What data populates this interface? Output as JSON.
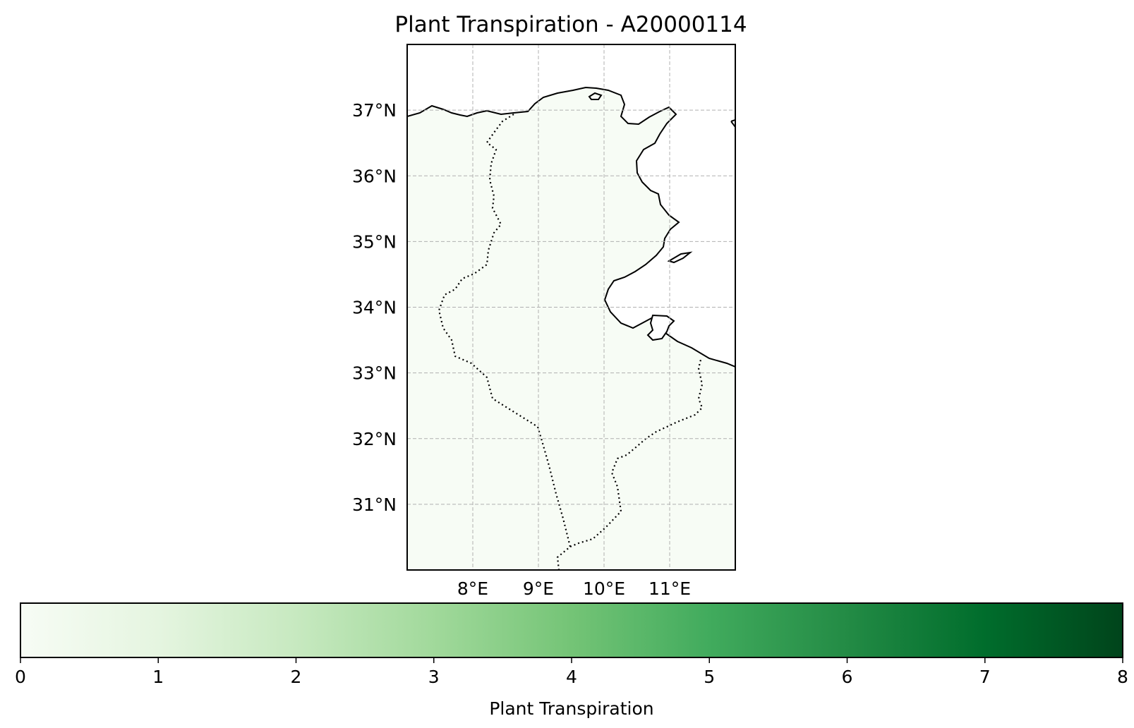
{
  "title": "Plant Transpiration - A20000114",
  "map": {
    "lon_range": [
      7.0,
      12.0
    ],
    "lat_range": [
      30.0,
      38.0
    ],
    "projection": "PlateCarree",
    "gridlines": true,
    "lon_ticks": [
      {
        "value": 8,
        "label": "8°E"
      },
      {
        "value": 9,
        "label": "9°E"
      },
      {
        "value": 10,
        "label": "10°E"
      },
      {
        "value": 11,
        "label": "11°E"
      }
    ],
    "lat_ticks": [
      {
        "value": 37,
        "label": "37°N"
      },
      {
        "value": 36,
        "label": "36°N"
      },
      {
        "value": 35,
        "label": "35°N"
      },
      {
        "value": 34,
        "label": "34°N"
      },
      {
        "value": 33,
        "label": "33°N"
      },
      {
        "value": 32,
        "label": "32°N"
      },
      {
        "value": 31,
        "label": "31°N"
      }
    ],
    "field_value": 0.0,
    "land_fill_color": "#f7fcf5",
    "coastline_color": "#000000",
    "border_style": "dotted"
  },
  "colorbar": {
    "label": "Plant Transpiration",
    "min": 0,
    "max": 8,
    "orientation": "horizontal",
    "colormap": "Greens",
    "colormap_stops": [
      "#f7fcf5",
      "#e5f5e0",
      "#c7e9c0",
      "#a1d99b",
      "#74c476",
      "#41ab5d",
      "#238b45",
      "#006d2c",
      "#00441b"
    ],
    "ticks": [
      {
        "value": 0,
        "label": "0"
      },
      {
        "value": 1,
        "label": "1"
      },
      {
        "value": 2,
        "label": "2"
      },
      {
        "value": 3,
        "label": "3"
      },
      {
        "value": 4,
        "label": "4"
      },
      {
        "value": 5,
        "label": "5"
      },
      {
        "value": 6,
        "label": "6"
      },
      {
        "value": 7,
        "label": "7"
      },
      {
        "value": 8,
        "label": "8"
      }
    ]
  }
}
